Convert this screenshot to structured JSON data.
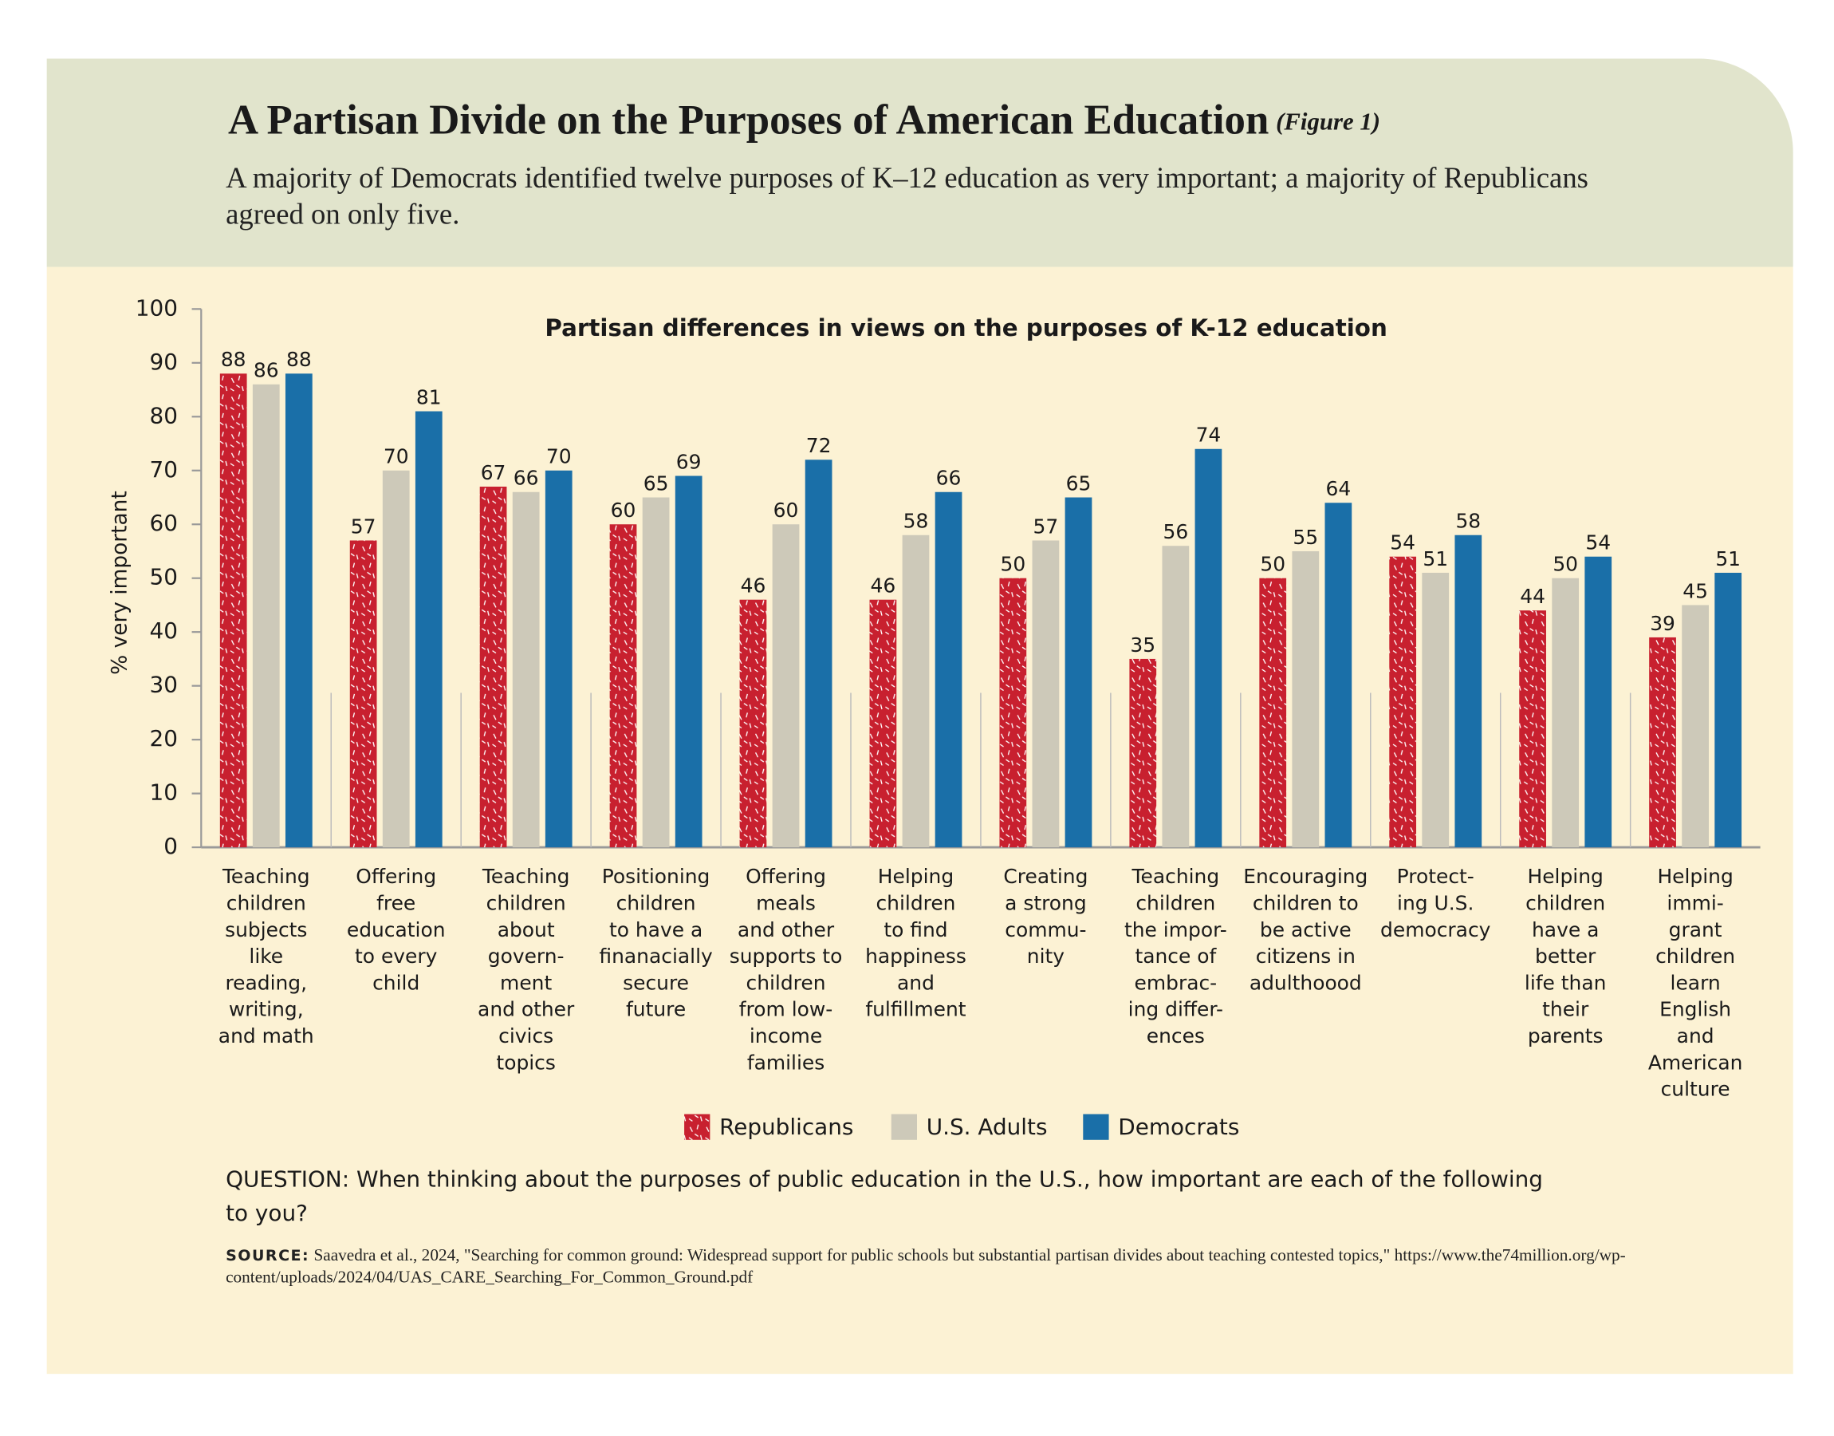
{
  "title": "A Partisan Divide on the Purposes of American Education",
  "figure_label": "(Figure 1)",
  "subtitle": "A majority of Democrats identified twelve purposes of K–12 education as very important; a majority of Republicans agreed on only five.",
  "question": "QUESTION: When thinking about the purposes of public education in the U.S., how important are each of the following to you?",
  "source_label": "SOURCE:",
  "source": "Saavedra et al., 2024, \"Searching for common ground: Widespread support for public schools but substantial partisan divides about teaching contested topics,\" https://www.the74million.org/wp-content/uploads/2024/04/UAS_CARE_Searching_For_Common_Ground.pdf",
  "chart_data": {
    "type": "bar",
    "title": "Partisan differences in views on the purposes of K-12 education",
    "y_label": "% very important",
    "categories": [
      [
        "Teaching",
        "children",
        "subjects",
        "like",
        "reading,",
        "writing,",
        "and math"
      ],
      [
        "Offering",
        "free",
        "education",
        "to every",
        "child"
      ],
      [
        "Teaching",
        "children",
        "about",
        "govern-",
        "ment",
        "and other",
        "civics",
        "topics"
      ],
      [
        "Positioning",
        "children",
        "to have a",
        "finanacially",
        "secure",
        "future"
      ],
      [
        "Offering",
        "meals",
        "and other",
        "supports to",
        "children",
        "from low-",
        "income",
        "families"
      ],
      [
        "Helping",
        "children",
        "to find",
        "happiness",
        "and",
        "fulfillment"
      ],
      [
        "Creating",
        "a strong",
        "commu-",
        "nity"
      ],
      [
        "Teaching",
        "children",
        "the impor-",
        "tance of",
        "embrac-",
        "ing differ-",
        "ences"
      ],
      [
        "Encouraging",
        "children to",
        "be active",
        "citizens in",
        "adulthoood"
      ],
      [
        "Protect-",
        "ing U.S.",
        "democracy"
      ],
      [
        "Helping",
        "children",
        "have a",
        "better",
        "life than",
        "their",
        "parents"
      ],
      [
        "Helping",
        "immi-",
        "grant",
        "children",
        "learn",
        "English",
        "and",
        "American",
        "culture"
      ]
    ],
    "series": [
      {
        "name": "Republicans",
        "color": "#c8202f",
        "values": [
          88,
          57,
          67,
          60,
          46,
          46,
          50,
          35,
          50,
          54,
          44,
          39
        ]
      },
      {
        "name": "U.S. Adults",
        "color": "#cdc9b9",
        "values": [
          86,
          70,
          66,
          65,
          60,
          58,
          57,
          56,
          55,
          51,
          50,
          45
        ]
      },
      {
        "name": "Democrats",
        "color": "#1a6fa8",
        "values": [
          88,
          81,
          70,
          69,
          72,
          66,
          65,
          74,
          64,
          58,
          54,
          51
        ]
      }
    ],
    "ylim": [
      0,
      100
    ],
    "yticks": [
      0,
      10,
      20,
      30,
      40,
      50,
      60,
      70,
      80,
      90,
      100
    ]
  }
}
